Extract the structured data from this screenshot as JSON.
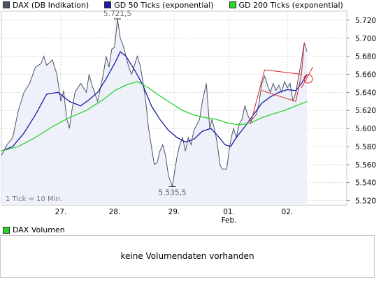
{
  "legend": [
    {
      "label": "DAX (DB Indikation)",
      "color": "#4a5566"
    },
    {
      "label": "GD 50 Ticks (exponential)",
      "color": "#1a1aa6"
    },
    {
      "label": "GD 200 Ticks (exponential)",
      "color": "#2ad52a"
    }
  ],
  "volume": {
    "legend_label": "DAX Volumen",
    "legend_color": "#2ad52a",
    "message": "keine Volumendaten vorhanden"
  },
  "chart_data": {
    "type": "line",
    "title": "",
    "xlabel": "",
    "ylabel": "",
    "ylim": [
      5515,
      5730
    ],
    "y_ticks": [
      5520,
      5540,
      5560,
      5580,
      5600,
      5620,
      5640,
      5660,
      5680,
      5700,
      5720
    ],
    "y_tick_labels": [
      "5.520",
      "5.540",
      "5.560",
      "5.580",
      "5.600",
      "5.620",
      "5.640",
      "5.660",
      "5.680",
      "5.700",
      "5.720"
    ],
    "x_ticks": [
      {
        "x": 0.85,
        "label": "27."
      },
      {
        "x": 1.8,
        "label": "28."
      },
      {
        "x": 2.85,
        "label": "29."
      },
      {
        "x": 3.82,
        "label": "01.",
        "sublabel": "Feb."
      },
      {
        "x": 4.85,
        "label": "02."
      }
    ],
    "xlim": [
      -0.2,
      5.9
    ],
    "note": "1 Tick = 10 Min.",
    "annotations": [
      {
        "label": "5.721,5",
        "x": 1.85,
        "y": 5721.5
      },
      {
        "label": "5.535,5",
        "x": 2.82,
        "y": 5535.5
      }
    ],
    "grid": true,
    "series": [
      {
        "name": "DAX (DB Indikation)",
        "color": "#4a5566",
        "points": [
          [
            -0.2,
            5570
          ],
          [
            -0.1,
            5582
          ],
          [
            0.0,
            5590
          ],
          [
            0.1,
            5620
          ],
          [
            0.2,
            5640
          ],
          [
            0.3,
            5650
          ],
          [
            0.4,
            5668
          ],
          [
            0.5,
            5672
          ],
          [
            0.55,
            5680
          ],
          [
            0.6,
            5670
          ],
          [
            0.7,
            5676
          ],
          [
            0.78,
            5660
          ],
          [
            0.85,
            5630
          ],
          [
            0.9,
            5642
          ],
          [
            0.95,
            5612
          ],
          [
            1.0,
            5600
          ],
          [
            1.05,
            5622
          ],
          [
            1.1,
            5640
          ],
          [
            1.2,
            5650
          ],
          [
            1.3,
            5640
          ],
          [
            1.35,
            5660
          ],
          [
            1.4,
            5648
          ],
          [
            1.5,
            5630
          ],
          [
            1.55,
            5645
          ],
          [
            1.6,
            5660
          ],
          [
            1.65,
            5680
          ],
          [
            1.7,
            5668
          ],
          [
            1.75,
            5688
          ],
          [
            1.8,
            5690
          ],
          [
            1.85,
            5721.5
          ],
          [
            1.9,
            5700
          ],
          [
            1.95,
            5692
          ],
          [
            2.0,
            5680
          ],
          [
            2.05,
            5668
          ],
          [
            2.1,
            5660
          ],
          [
            2.15,
            5670
          ],
          [
            2.2,
            5680
          ],
          [
            2.25,
            5670
          ],
          [
            2.3,
            5652
          ],
          [
            2.35,
            5630
          ],
          [
            2.4,
            5600
          ],
          [
            2.45,
            5580
          ],
          [
            2.5,
            5560
          ],
          [
            2.55,
            5562
          ],
          [
            2.6,
            5575
          ],
          [
            2.65,
            5582
          ],
          [
            2.7,
            5570
          ],
          [
            2.75,
            5548
          ],
          [
            2.82,
            5535.5
          ],
          [
            2.9,
            5568
          ],
          [
            2.95,
            5582
          ],
          [
            3.0,
            5590
          ],
          [
            3.05,
            5575
          ],
          [
            3.1,
            5590
          ],
          [
            3.15,
            5582
          ],
          [
            3.2,
            5598
          ],
          [
            3.3,
            5610
          ],
          [
            3.35,
            5630
          ],
          [
            3.42,
            5650
          ],
          [
            3.48,
            5600
          ],
          [
            3.52,
            5610
          ],
          [
            3.58,
            5595
          ],
          [
            3.62,
            5580
          ],
          [
            3.66,
            5560
          ],
          [
            3.7,
            5555
          ],
          [
            3.78,
            5555
          ],
          [
            3.82,
            5575
          ],
          [
            3.86,
            5590
          ],
          [
            3.9,
            5600
          ],
          [
            3.95,
            5590
          ],
          [
            4.0,
            5605
          ],
          [
            4.05,
            5610
          ],
          [
            4.1,
            5625
          ],
          [
            4.15,
            5615
          ],
          [
            4.2,
            5608
          ],
          [
            4.3,
            5615
          ],
          [
            4.35,
            5628
          ],
          [
            4.4,
            5650
          ],
          [
            4.45,
            5658
          ],
          [
            4.5,
            5648
          ],
          [
            4.55,
            5640
          ],
          [
            4.6,
            5650
          ],
          [
            4.65,
            5642
          ],
          [
            4.7,
            5648
          ],
          [
            4.75,
            5640
          ],
          [
            4.8,
            5652
          ],
          [
            4.85,
            5645
          ],
          [
            4.9,
            5650
          ],
          [
            4.95,
            5630
          ],
          [
            5.0,
            5640
          ],
          [
            5.05,
            5658
          ],
          [
            5.1,
            5675
          ],
          [
            5.15,
            5695
          ],
          [
            5.2,
            5685
          ]
        ]
      },
      {
        "name": "GD 50 Ticks (exponential)",
        "color": "#1a1aa6",
        "points": [
          [
            -0.2,
            5575
          ],
          [
            0.0,
            5580
          ],
          [
            0.2,
            5595
          ],
          [
            0.4,
            5615
          ],
          [
            0.6,
            5638
          ],
          [
            0.8,
            5640
          ],
          [
            1.0,
            5630
          ],
          [
            1.2,
            5625
          ],
          [
            1.35,
            5632
          ],
          [
            1.5,
            5640
          ],
          [
            1.65,
            5655
          ],
          [
            1.8,
            5672
          ],
          [
            1.9,
            5685
          ],
          [
            2.0,
            5680
          ],
          [
            2.15,
            5665
          ],
          [
            2.3,
            5648
          ],
          [
            2.45,
            5625
          ],
          [
            2.6,
            5610
          ],
          [
            2.75,
            5598
          ],
          [
            2.9,
            5590
          ],
          [
            3.05,
            5585
          ],
          [
            3.2,
            5588
          ],
          [
            3.35,
            5597
          ],
          [
            3.5,
            5600
          ],
          [
            3.62,
            5592
          ],
          [
            3.75,
            5582
          ],
          [
            3.85,
            5580
          ],
          [
            3.95,
            5590
          ],
          [
            4.1,
            5602
          ],
          [
            4.25,
            5615
          ],
          [
            4.4,
            5628
          ],
          [
            4.55,
            5635
          ],
          [
            4.7,
            5640
          ],
          [
            4.85,
            5643
          ],
          [
            5.0,
            5642
          ],
          [
            5.1,
            5650
          ],
          [
            5.2,
            5660
          ]
        ]
      },
      {
        "name": "GD 200 Ticks (exponential)",
        "color": "#2ad52a",
        "points": [
          [
            -0.2,
            5575
          ],
          [
            0.1,
            5580
          ],
          [
            0.4,
            5590
          ],
          [
            0.7,
            5602
          ],
          [
            1.0,
            5612
          ],
          [
            1.3,
            5620
          ],
          [
            1.6,
            5632
          ],
          [
            1.8,
            5642
          ],
          [
            2.0,
            5648
          ],
          [
            2.2,
            5652
          ],
          [
            2.4,
            5645
          ],
          [
            2.6,
            5636
          ],
          [
            2.8,
            5628
          ],
          [
            3.0,
            5620
          ],
          [
            3.2,
            5615
          ],
          [
            3.4,
            5612
          ],
          [
            3.6,
            5610
          ],
          [
            3.8,
            5606
          ],
          [
            4.0,
            5604
          ],
          [
            4.2,
            5606
          ],
          [
            4.4,
            5612
          ],
          [
            4.6,
            5616
          ],
          [
            4.8,
            5620
          ],
          [
            5.0,
            5625
          ],
          [
            5.2,
            5630
          ]
        ]
      }
    ],
    "drawings": [
      {
        "type": "line",
        "color": "#e02020",
        "points": [
          [
            4.2,
            5605
          ],
          [
            4.45,
            5665
          ]
        ]
      },
      {
        "type": "line",
        "color": "#e02020",
        "points": [
          [
            4.45,
            5665
          ],
          [
            5.1,
            5660
          ]
        ]
      },
      {
        "type": "line",
        "color": "#e02020",
        "points": [
          [
            4.4,
            5642
          ],
          [
            5.0,
            5630
          ]
        ]
      },
      {
        "type": "line",
        "color": "#e02020",
        "points": [
          [
            5.0,
            5630
          ],
          [
            5.1,
            5660
          ]
        ]
      },
      {
        "type": "line",
        "color": "#e02020",
        "points": [
          [
            5.1,
            5660
          ],
          [
            5.15,
            5695
          ]
        ]
      },
      {
        "type": "line",
        "color": "#e02020",
        "points": [
          [
            5.1,
            5645
          ],
          [
            5.3,
            5668
          ]
        ]
      },
      {
        "type": "circle",
        "color": "#e02020",
        "center": [
          5.22,
          5655
        ]
      }
    ]
  }
}
